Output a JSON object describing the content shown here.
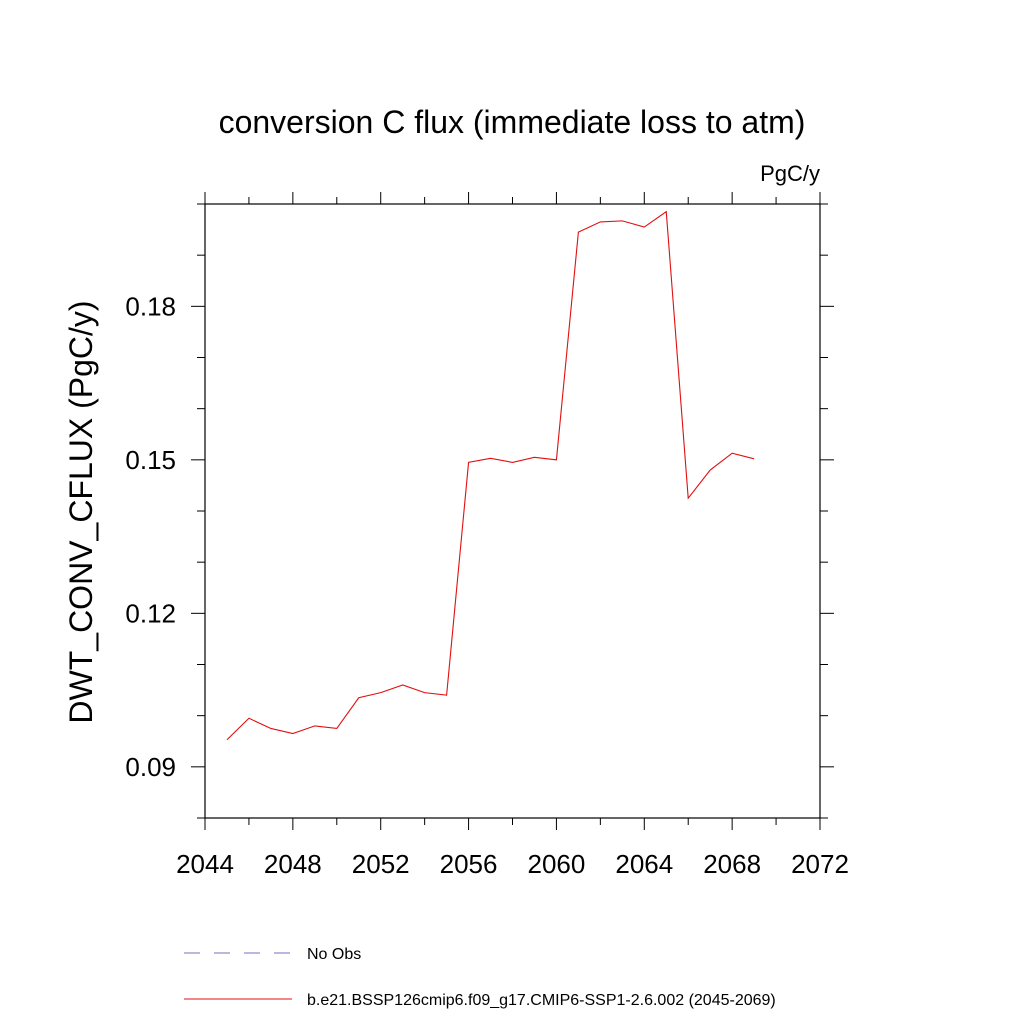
{
  "chart_data": {
    "type": "line",
    "title": "conversion C flux (immediate loss to atm)",
    "units_label": "PgC/y",
    "ylabel": "DWT_CONV_CFLUX  (PgC/y)",
    "xlabel": "",
    "xlim": [
      2044,
      2072
    ],
    "ylim": [
      0.08,
      0.2
    ],
    "x_ticks": [
      2044,
      2048,
      2052,
      2056,
      2060,
      2064,
      2068,
      2072
    ],
    "x_tick_labels": [
      "2044",
      "2048",
      "2052",
      "2056",
      "2060",
      "2064",
      "2068",
      "2072"
    ],
    "y_ticks": [
      0.09,
      0.12,
      0.15,
      0.18
    ],
    "y_tick_labels": [
      "0.09",
      "0.12",
      "0.15",
      "0.18"
    ],
    "grid": false,
    "legend_position": "bottom",
    "series": [
      {
        "name": "No Obs",
        "color": "#7b6fbf",
        "dash": "dashed",
        "x": [],
        "values": []
      },
      {
        "name": "b.e21.BSSP126cmip6.f09_g17.CMIP6-SSP1-2.6.002 (2045-2069)",
        "color": "#e01010",
        "dash": "solid",
        "x": [
          2045,
          2046,
          2047,
          2048,
          2049,
          2050,
          2051,
          2052,
          2053,
          2054,
          2055,
          2056,
          2057,
          2058,
          2059,
          2060,
          2061,
          2062,
          2063,
          2064,
          2065,
          2066,
          2067,
          2068,
          2069
        ],
        "values": [
          0.0953,
          0.0995,
          0.0975,
          0.0965,
          0.098,
          0.0975,
          0.1035,
          0.1045,
          0.106,
          0.1045,
          0.104,
          0.1495,
          0.1503,
          0.1495,
          0.1505,
          0.15,
          0.1945,
          0.1965,
          0.1967,
          0.1955,
          0.1985,
          0.1425,
          0.148,
          0.1513,
          0.1502
        ]
      }
    ]
  }
}
